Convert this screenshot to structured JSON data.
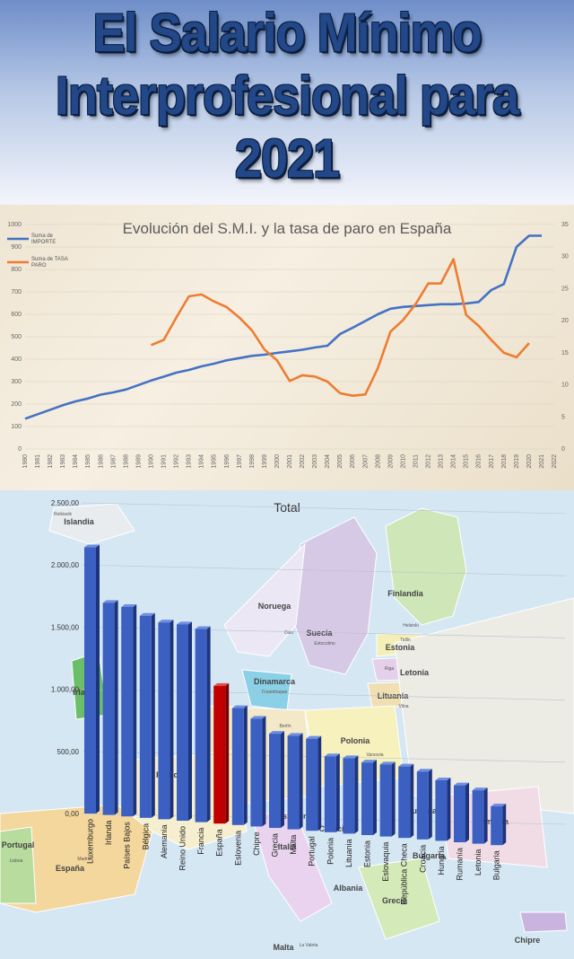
{
  "header": {
    "title_line1": "El Salario Mínimo",
    "title_line2": "Interprofesional para",
    "title_line3": "2021"
  },
  "colors": {
    "title": "#22488a",
    "importe_line": "#4472c4",
    "tasa_line": "#ed7d31",
    "bar_blue": "#3c5fc2",
    "bar_highlight": "#c00000"
  },
  "chart_data": [
    {
      "type": "line",
      "title": "Evolución del S.M.I. y la tasa de paro en España",
      "x": [
        1980,
        1981,
        1982,
        1983,
        1984,
        1985,
        1986,
        1987,
        1988,
        1989,
        1990,
        1991,
        1992,
        1993,
        1994,
        1995,
        1996,
        1997,
        1998,
        1999,
        2000,
        2001,
        2002,
        2003,
        2004,
        2005,
        2006,
        2007,
        2008,
        2009,
        2010,
        2011,
        2012,
        2013,
        2014,
        2015,
        2016,
        2017,
        2018,
        2019,
        2020,
        2021,
        2022
      ],
      "x_ticks": [
        "1980",
        "1981",
        "1982",
        "1983",
        "1984",
        "1985",
        "1986",
        "1987",
        "1988",
        "1989",
        "1990",
        "1991",
        "1992",
        "1993",
        "1994",
        "1995",
        "1996",
        "1997",
        "1998",
        "1999",
        "2000",
        "2001",
        "2002",
        "2003",
        "2004",
        "2005",
        "2006",
        "2007",
        "2008",
        "2009",
        "2010",
        "2011",
        "2012",
        "2013",
        "2014",
        "2015",
        "2016",
        "2017",
        "2018",
        "2019",
        "2020",
        "2021",
        "2022"
      ],
      "y_left_ticks": [
        "0",
        "100",
        "200",
        "300",
        "400",
        "500",
        "600",
        "700",
        "800",
        "900",
        "1000"
      ],
      "y_right_ticks": [
        "0",
        "5",
        "10",
        "15",
        "20",
        "25",
        "30",
        "35"
      ],
      "ylim_left": [
        0,
        1000
      ],
      "ylim_right": [
        0,
        35
      ],
      "legend_position": "top-left",
      "series": [
        {
          "name": "Suma de IMPORTE",
          "axis": "left",
          "x": [
            1980,
            1981,
            1982,
            1983,
            1984,
            1985,
            1986,
            1987,
            1988,
            1989,
            1990,
            1991,
            1992,
            1993,
            1994,
            1995,
            1996,
            1997,
            1998,
            1999,
            2000,
            2001,
            2002,
            2003,
            2004,
            2005,
            2006,
            2007,
            2008,
            2009,
            2010,
            2011,
            2012,
            2013,
            2014,
            2015,
            2016,
            2017,
            2018,
            2019,
            2020,
            2021
          ],
          "values": [
            135,
            155,
            175,
            195,
            212,
            225,
            242,
            252,
            265,
            285,
            305,
            322,
            340,
            352,
            368,
            380,
            395,
            405,
            415,
            420,
            428,
            435,
            442,
            452,
            460,
            512,
            540,
            570,
            600,
            625,
            633,
            637,
            641,
            645,
            645,
            648,
            655,
            708,
            735,
            900,
            950,
            950
          ]
        },
        {
          "name": "Suma de TASA PARO",
          "axis": "right",
          "x": [
            1990,
            1991,
            1992,
            1993,
            1994,
            1995,
            1996,
            1997,
            1998,
            1999,
            2000,
            2001,
            2002,
            2003,
            2004,
            2005,
            2006,
            2007,
            2008,
            2009,
            2010,
            2011,
            2012,
            2013,
            2014,
            2015,
            2016,
            2017,
            2018,
            2019,
            2020
          ],
          "values": [
            16.2,
            17.0,
            20.5,
            23.8,
            24.1,
            23.0,
            22.1,
            20.5,
            18.5,
            15.5,
            13.8,
            10.6,
            11.5,
            11.3,
            10.5,
            8.7,
            8.3,
            8.5,
            12.6,
            18.3,
            20.1,
            22.6,
            25.8,
            25.8,
            29.6,
            20.9,
            19.2,
            17.0,
            15.0,
            14.3,
            16.5
          ]
        }
      ]
    },
    {
      "type": "bar",
      "title": "Total",
      "categories": [
        "Luxemburgo",
        "Irlanda",
        "Países Bajos",
        "Bélgica",
        "Alemania",
        "Reino Unido",
        "Francia",
        "España",
        "Eslovenia",
        "Chipre",
        "Grecia",
        "Malta",
        "Portugal",
        "Polonia",
        "Lituania",
        "Estonia",
        "Eslovaquia",
        "República Checa",
        "Croacia",
        "Hungría",
        "Rumanía",
        "Letonia",
        "Bulgaria"
      ],
      "values": [
        2142,
        1707,
        1685,
        1626,
        1584,
        1580,
        1554,
        1108,
        941,
        867,
        758,
        753,
        741,
        611,
        607,
        584,
        580,
        575,
        546,
        487,
        458,
        430,
        312
      ],
      "highlight": "España",
      "y_ticks": [
        "0,00",
        "500,00",
        "1.000,00",
        "1.500,00",
        "2.000,00",
        "2.500,00"
      ],
      "ylim": [
        0,
        2500
      ]
    }
  ],
  "map_labels": {
    "countries": [
      "Islandia",
      "Noruega",
      "Suecia",
      "Finlandia",
      "Estonia",
      "Letonia",
      "Lituania",
      "Dinamarca",
      "Polonia",
      "Portugal",
      "España",
      "Malta",
      "Irlanda",
      "Francia",
      "Italia",
      "Bulgaria",
      "Grecia",
      "Albania",
      "Hungría",
      "Croacia",
      "Eslovenia",
      "Rumanía",
      "Chipre"
    ],
    "cities": [
      "Reikiavik",
      "Oslo",
      "Estocolmo",
      "Helsinki",
      "Tallin",
      "Riga",
      "Vilna",
      "Copenhague",
      "Berlín",
      "Varsovia",
      "Madrid",
      "Lisboa",
      "La Valeta"
    ]
  }
}
